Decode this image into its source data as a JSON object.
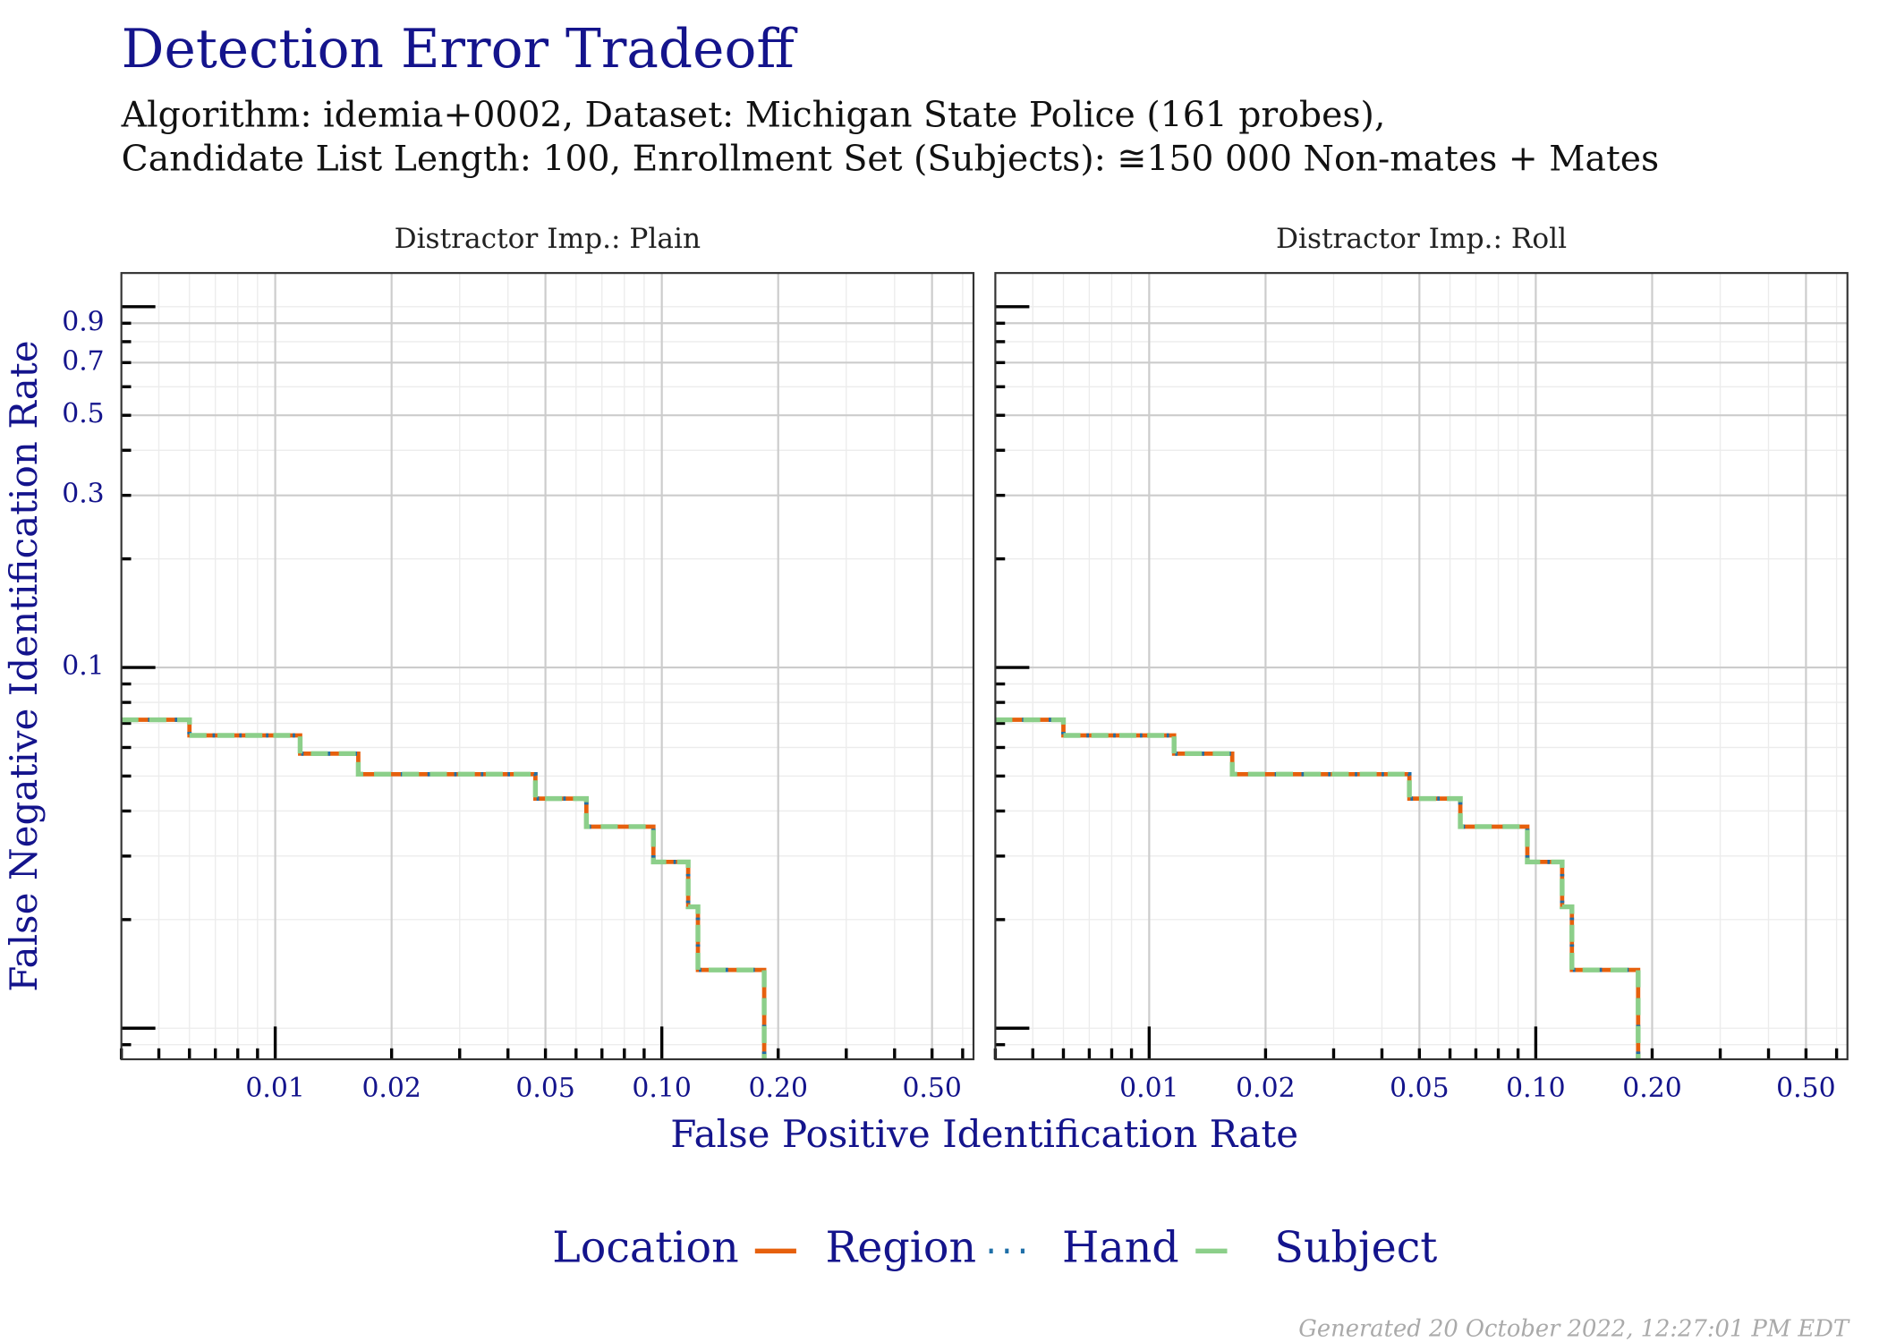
{
  "chart_data": {
    "type": "line",
    "title": "Detection Error Tradeoff",
    "subtitle": [
      "Algorithm: idemia+0002, Dataset: Michigan State Police (161 probes),",
      "Candidate List Length: 100, Enrollment Set (Subjects): ≅150 000 Non-mates + Mates"
    ],
    "x_label": "False Positive Identification Rate",
    "y_label": "False Negative Identification Rate",
    "legend_title": "Location",
    "footer": "Generated 20 October 2022, 12:27:01 PM EDT",
    "log_x": true,
    "log_y": true,
    "grid": true,
    "step": "post",
    "legend": "bottom",
    "xlim": [
      0.004,
      0.64
    ],
    "xticks": [
      0.01,
      0.02,
      0.05,
      {
        "value": 0.1,
        "label": "0.10"
      },
      {
        "value": 0.2,
        "label": "0.20"
      },
      {
        "value": 0.5,
        "label": "0.50"
      }
    ],
    "ylim": [
      0.0082,
      1.24
    ],
    "yticks": [
      0.1,
      0.3,
      0.5,
      0.7,
      0.9
    ],
    "facets": [
      {
        "title": "Distractor Imp.: Plain",
        "x": [
          0.004,
          0.006,
          0.0116,
          0.0164,
          0.0471,
          0.0638,
          0.0951,
          0.117,
          0.124,
          0.184
        ],
        "series": [
          {
            "name": "Region",
            "color": "#e6600d",
            "style": "solid",
            "values": [
              0.0716,
              0.0648,
              0.0577,
              0.0506,
              0.0433,
              0.0362,
              0.0289,
              0.0217,
              0.0145,
              0.0075
            ]
          },
          {
            "name": "Hand",
            "color": "#1f6fa8",
            "style": "dotted",
            "values": [
              0.0716,
              0.0648,
              0.0577,
              0.0506,
              0.0433,
              0.0362,
              0.0289,
              0.0217,
              0.0145,
              0.0075
            ]
          },
          {
            "name": "Subject",
            "color": "#8ccf8a",
            "style": "dashed",
            "values": [
              0.0716,
              0.0648,
              0.0577,
              0.0506,
              0.0433,
              0.0362,
              0.0289,
              0.0217,
              0.0145,
              0.0075
            ]
          }
        ]
      },
      {
        "title": "Distractor Imp.: Roll",
        "x": [
          0.004,
          0.006,
          0.0116,
          0.0164,
          0.0471,
          0.0638,
          0.0951,
          0.117,
          0.124,
          0.184
        ],
        "series": [
          {
            "name": "Region",
            "color": "#e6600d",
            "style": "solid",
            "values": [
              0.0716,
              0.0648,
              0.0577,
              0.0506,
              0.0433,
              0.0362,
              0.0289,
              0.0217,
              0.0145,
              0.0075
            ]
          },
          {
            "name": "Hand",
            "color": "#1f6fa8",
            "style": "dotted",
            "values": [
              0.0716,
              0.0648,
              0.0577,
              0.0506,
              0.0433,
              0.0362,
              0.0289,
              0.0217,
              0.0145,
              0.0075
            ]
          },
          {
            "name": "Subject",
            "color": "#8ccf8a",
            "style": "dashed",
            "values": [
              0.0716,
              0.0648,
              0.0577,
              0.0506,
              0.0433,
              0.0362,
              0.0289,
              0.0217,
              0.0145,
              0.0075
            ]
          }
        ]
      }
    ]
  }
}
